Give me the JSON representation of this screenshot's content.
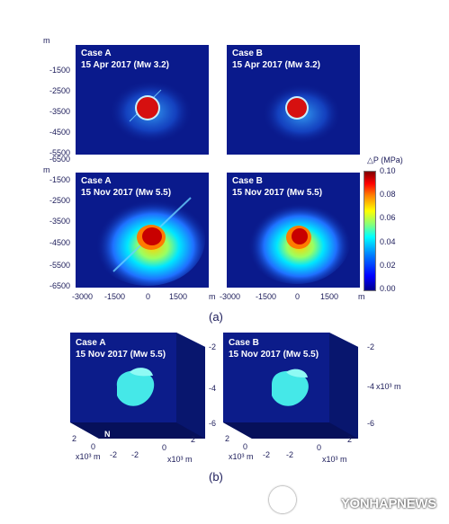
{
  "panels_top": [
    {
      "case": "Case A",
      "date": "15 Apr 2017 (Mw 3.2)"
    },
    {
      "case": "Case B",
      "date": "15 Apr 2017 (Mw 3.2)"
    },
    {
      "case": "Case A",
      "date": "15 Nov 2017 (Mw 5.5)"
    },
    {
      "case": "Case B",
      "date": "15 Nov 2017 (Mw 5.5)"
    }
  ],
  "y_ticks_top": [
    "-1500",
    "-2500",
    "-3500",
    "-4500",
    "-5500",
    "-6500"
  ],
  "y_ticks_bottom": [
    "-1500",
    "-2500",
    "-3500",
    "-4500",
    "-5500",
    "-6500"
  ],
  "y_unit": "m",
  "x_ticks": [
    "-3000",
    "-1500",
    "0",
    "1500"
  ],
  "x_unit": "m",
  "colorbar": {
    "title": "△P (MPa)",
    "ticks": [
      "0.10",
      "0.08",
      "0.06",
      "0.04",
      "0.02",
      "0.00"
    ]
  },
  "label_a": "(a)",
  "panels_3d": [
    {
      "case": "Case A",
      "date": "15 Nov 2017 (Mw 5.5)"
    },
    {
      "case": "Case B",
      "date": "15 Nov 2017 (Mw 5.5)"
    }
  ],
  "z_ticks": [
    "-2",
    "-4",
    "-6"
  ],
  "z_unit": "x10³ m",
  "depth_ticks": [
    "2",
    "0",
    "-2"
  ],
  "horiz_ticks": [
    "2",
    "0",
    "-2"
  ],
  "horiz_unit": "x10³ m",
  "compass": {
    "n": "N",
    "e": "E"
  },
  "label_b": "(b)",
  "watermark": "YONHAPNEWS"
}
